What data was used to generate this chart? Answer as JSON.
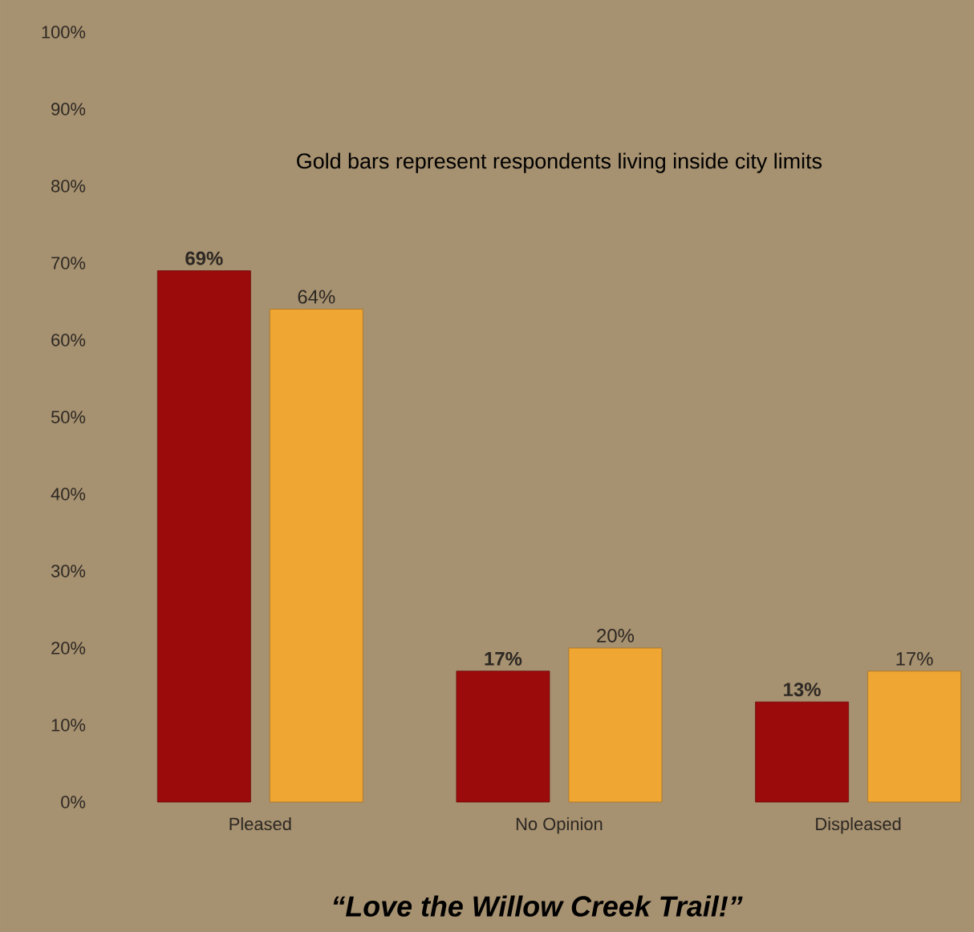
{
  "chart_data": {
    "type": "bar",
    "title": "“Love the Willow Creek Trail!”",
    "annotations": [
      "Gold bars represent respondents living inside city limits"
    ],
    "categories": [
      "Pleased",
      "No Opinion",
      "Displeased"
    ],
    "series": [
      {
        "color": "#9b0b0b",
        "values": [
          69,
          17,
          13
        ],
        "value_labels": [
          "69%",
          "17%",
          "13%"
        ]
      },
      {
        "color": "#f0a632",
        "values": [
          64,
          20,
          17
        ],
        "value_labels": [
          "64%",
          "20%",
          "17%"
        ]
      }
    ],
    "ylim": [
      0,
      100
    ],
    "yticks": [
      {
        "value": 0,
        "label": "0%"
      },
      {
        "value": 10,
        "label": "10%"
      },
      {
        "value": 20,
        "label": "20%"
      },
      {
        "value": 30,
        "label": "30%"
      },
      {
        "value": 40,
        "label": "40%"
      },
      {
        "value": 50,
        "label": "50%"
      },
      {
        "value": 60,
        "label": "60%"
      },
      {
        "value": 70,
        "label": "70%"
      },
      {
        "value": 80,
        "label": "80%"
      },
      {
        "value": 90,
        "label": "90%"
      },
      {
        "value": 100,
        "label": "100%"
      }
    ],
    "ylabel": null
  }
}
